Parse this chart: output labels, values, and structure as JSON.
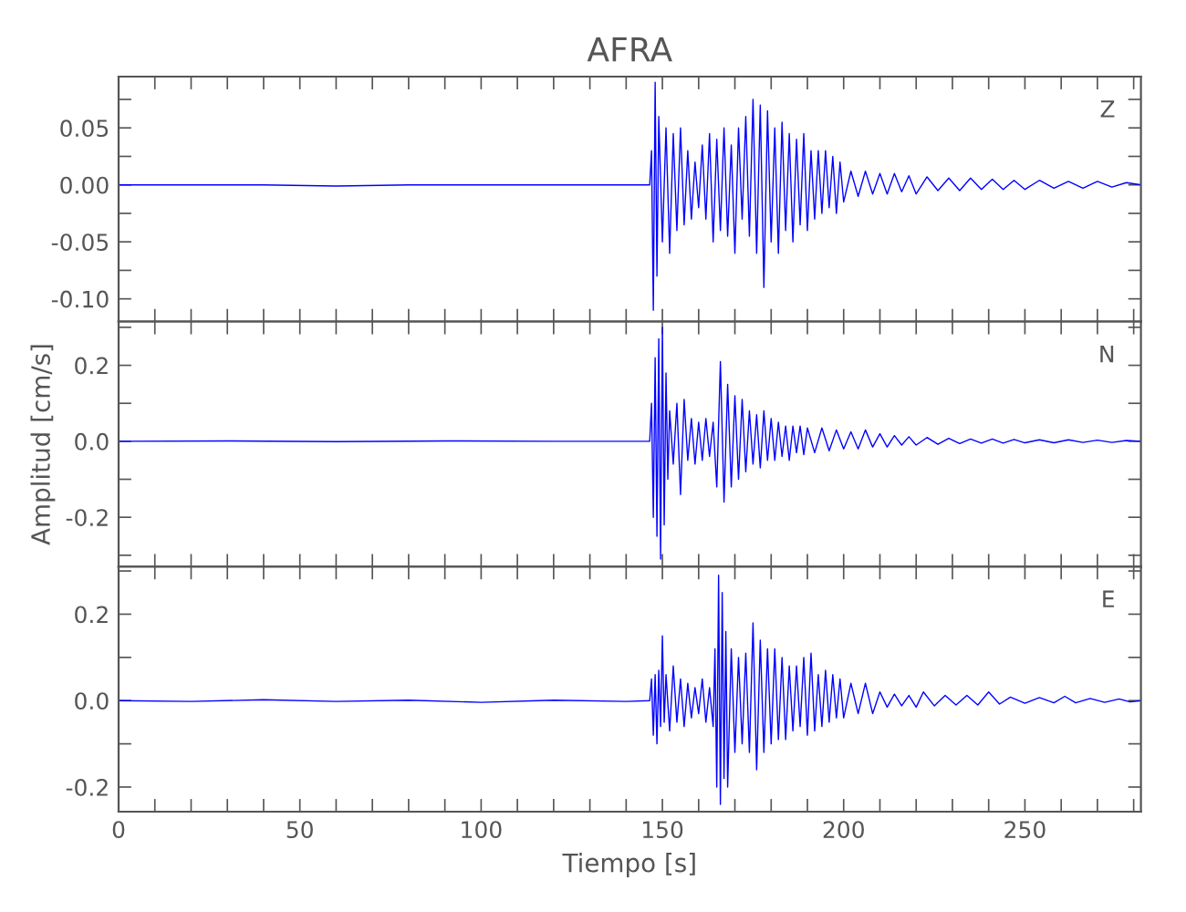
{
  "chart_data": [
    {
      "type": "line",
      "title": "AFRA",
      "annotations": [
        "Z"
      ],
      "tick_labels": "y",
      "xlim": [
        0,
        282
      ],
      "ylim": [
        -0.12,
        0.095
      ],
      "xticks": [
        0,
        {
          "value": 10,
          "label": null
        },
        {
          "value": 20,
          "label": null
        },
        {
          "value": 30,
          "label": null
        },
        {
          "value": 40,
          "label": null
        },
        50,
        {
          "value": 60,
          "label": null
        },
        {
          "value": 70,
          "label": null
        },
        {
          "value": 80,
          "label": null
        },
        {
          "value": 90,
          "label": null
        },
        100,
        {
          "value": 110,
          "label": null
        },
        {
          "value": 120,
          "label": null
        },
        {
          "value": 130,
          "label": null
        },
        {
          "value": 140,
          "label": null
        },
        150,
        {
          "value": 160,
          "label": null
        },
        {
          "value": 170,
          "label": null
        },
        {
          "value": 180,
          "label": null
        },
        {
          "value": 190,
          "label": null
        },
        200,
        {
          "value": 210,
          "label": null
        },
        {
          "value": 220,
          "label": null
        },
        {
          "value": 230,
          "label": null
        },
        {
          "value": 240,
          "label": null
        },
        250,
        {
          "value": 260,
          "label": null
        },
        {
          "value": 270,
          "label": null
        },
        {
          "value": 280,
          "label": null
        }
      ],
      "yticks": [
        {
          "value": -0.1,
          "label": "-0.10"
        },
        {
          "value": -0.075,
          "label": null
        },
        {
          "value": -0.05,
          "label": "-0.05"
        },
        {
          "value": -0.025,
          "label": null
        },
        {
          "value": 0,
          "label": "0.00"
        },
        {
          "value": 0.025,
          "label": null
        },
        {
          "value": 0.05,
          "label": "0.05"
        },
        {
          "value": 0.075,
          "label": null
        }
      ],
      "series": [
        {
          "color": "#0000ff",
          "x": [
            0,
            20,
            40,
            60,
            80,
            100,
            120,
            140,
            146.5,
            147,
            147.5,
            148,
            148.5,
            149,
            150,
            151,
            152,
            153,
            154,
            155,
            156,
            157,
            158,
            159,
            160,
            161,
            162,
            163,
            164,
            165,
            166,
            167,
            168,
            169,
            170,
            171,
            172,
            173,
            174,
            175,
            176,
            177,
            178,
            179,
            180,
            181,
            182,
            183,
            184,
            185,
            186,
            187,
            188,
            189,
            190,
            191,
            192,
            193,
            194,
            195,
            196,
            197,
            198,
            199,
            200,
            202,
            204,
            206,
            208,
            210,
            212,
            214,
            216,
            218,
            220,
            223,
            226,
            229,
            232,
            235,
            238,
            241,
            244,
            247,
            250,
            254,
            258,
            262,
            266,
            270,
            274,
            278,
            282
          ],
          "values": [
            0,
            0,
            0,
            -0.001,
            0,
            0,
            0,
            0,
            0,
            0.03,
            -0.11,
            0.09,
            -0.08,
            0.06,
            -0.05,
            0.05,
            -0.06,
            0.045,
            -0.04,
            0.05,
            -0.035,
            0.03,
            -0.03,
            0.02,
            -0.02,
            0.035,
            -0.03,
            0.045,
            -0.05,
            0.04,
            -0.04,
            0.05,
            -0.045,
            0.035,
            -0.06,
            0.05,
            -0.03,
            0.06,
            -0.045,
            0.075,
            -0.06,
            0.07,
            -0.09,
            0.065,
            -0.05,
            0.05,
            -0.06,
            0.055,
            -0.04,
            0.045,
            -0.05,
            0.04,
            -0.035,
            0.045,
            -0.04,
            0.03,
            -0.03,
            0.03,
            -0.025,
            0.03,
            -0.02,
            0.025,
            -0.025,
            0.02,
            -0.015,
            0.012,
            -0.01,
            0.012,
            -0.008,
            0.01,
            -0.008,
            0.01,
            -0.006,
            0.008,
            -0.008,
            0.007,
            -0.005,
            0.006,
            -0.005,
            0.006,
            -0.004,
            0.005,
            -0.004,
            0.004,
            -0.004,
            0.004,
            -0.003,
            0.003,
            -0.003,
            0.003,
            -0.002,
            0.002,
            0
          ]
        }
      ]
    },
    {
      "type": "line",
      "ylabel": "Amplitud [cm/s]",
      "annotations": [
        "N"
      ],
      "tick_labels": "y",
      "xlim": [
        0,
        282
      ],
      "ylim": [
        -0.33,
        0.315
      ],
      "xticks": [
        0,
        {
          "value": 10,
          "label": null
        },
        {
          "value": 20,
          "label": null
        },
        {
          "value": 30,
          "label": null
        },
        {
          "value": 40,
          "label": null
        },
        50,
        {
          "value": 60,
          "label": null
        },
        {
          "value": 70,
          "label": null
        },
        {
          "value": 80,
          "label": null
        },
        {
          "value": 90,
          "label": null
        },
        100,
        {
          "value": 110,
          "label": null
        },
        {
          "value": 120,
          "label": null
        },
        {
          "value": 130,
          "label": null
        },
        {
          "value": 140,
          "label": null
        },
        150,
        {
          "value": 160,
          "label": null
        },
        {
          "value": 170,
          "label": null
        },
        {
          "value": 180,
          "label": null
        },
        {
          "value": 190,
          "label": null
        },
        200,
        {
          "value": 210,
          "label": null
        },
        {
          "value": 220,
          "label": null
        },
        {
          "value": 230,
          "label": null
        },
        {
          "value": 240,
          "label": null
        },
        250,
        {
          "value": 260,
          "label": null
        },
        {
          "value": 270,
          "label": null
        },
        {
          "value": 280,
          "label": null
        }
      ],
      "yticks": [
        {
          "value": -0.3,
          "label": null
        },
        {
          "value": -0.2,
          "label": "-0.2"
        },
        {
          "value": -0.1,
          "label": null
        },
        {
          "value": 0,
          "label": "0.0"
        },
        {
          "value": 0.1,
          "label": null
        },
        {
          "value": 0.2,
          "label": "0.2"
        },
        {
          "value": 0.3,
          "label": null
        }
      ],
      "series": [
        {
          "color": "#0000ff",
          "x": [
            0,
            30,
            60,
            90,
            120,
            146.5,
            147,
            147.5,
            148,
            148.5,
            149,
            149.5,
            150,
            150.5,
            151,
            151.5,
            152,
            153,
            154,
            155,
            156,
            157,
            158,
            159,
            160,
            161,
            162,
            163,
            164,
            165,
            166,
            167,
            168,
            169,
            170,
            171,
            172,
            173,
            174,
            175,
            176,
            177,
            178,
            179,
            180,
            181,
            182,
            183,
            184,
            185,
            186,
            187,
            188,
            189,
            190,
            192,
            194,
            196,
            198,
            200,
            202,
            204,
            206,
            208,
            210,
            212,
            214,
            216,
            218,
            220,
            223,
            226,
            229,
            232,
            235,
            238,
            241,
            244,
            247,
            250,
            254,
            258,
            262,
            266,
            270,
            274,
            278,
            282
          ],
          "values": [
            0,
            0.001,
            -0.001,
            0.001,
            0,
            0,
            0.1,
            -0.2,
            0.22,
            -0.25,
            0.27,
            -0.31,
            0.3,
            -0.22,
            0.18,
            -0.1,
            0.08,
            -0.06,
            0.1,
            -0.14,
            0.11,
            -0.05,
            0.06,
            -0.06,
            0.05,
            -0.05,
            0.06,
            -0.04,
            0.05,
            -0.12,
            0.21,
            -0.16,
            0.15,
            -0.12,
            0.12,
            -0.1,
            0.11,
            -0.08,
            0.08,
            -0.06,
            0.07,
            -0.07,
            0.08,
            -0.05,
            0.06,
            -0.05,
            0.05,
            -0.04,
            0.04,
            -0.05,
            0.04,
            -0.03,
            0.04,
            -0.035,
            0.035,
            -0.03,
            0.035,
            -0.025,
            0.03,
            -0.02,
            0.025,
            -0.02,
            0.03,
            -0.015,
            0.02,
            -0.015,
            0.015,
            -0.01,
            0.012,
            -0.01,
            0.01,
            -0.008,
            0.008,
            -0.006,
            0.006,
            -0.005,
            0.006,
            -0.005,
            0.005,
            -0.004,
            0.004,
            -0.004,
            0.004,
            -0.003,
            0.003,
            -0.003,
            0.002,
            0
          ]
        }
      ]
    },
    {
      "type": "line",
      "xlabel": "Tiempo [s]",
      "annotations": [
        "E"
      ],
      "xlim": [
        0,
        282
      ],
      "ylim": [
        -0.257,
        0.31
      ],
      "xticks": [
        0,
        {
          "value": 10,
          "label": null
        },
        {
          "value": 20,
          "label": null
        },
        {
          "value": 30,
          "label": null
        },
        {
          "value": 40,
          "label": null
        },
        50,
        {
          "value": 60,
          "label": null
        },
        {
          "value": 70,
          "label": null
        },
        {
          "value": 80,
          "label": null
        },
        {
          "value": 90,
          "label": null
        },
        100,
        {
          "value": 110,
          "label": null
        },
        {
          "value": 120,
          "label": null
        },
        {
          "value": 130,
          "label": null
        },
        {
          "value": 140,
          "label": null
        },
        150,
        {
          "value": 160,
          "label": null
        },
        {
          "value": 170,
          "label": null
        },
        {
          "value": 180,
          "label": null
        },
        {
          "value": 190,
          "label": null
        },
        200,
        {
          "value": 210,
          "label": null
        },
        {
          "value": 220,
          "label": null
        },
        {
          "value": 230,
          "label": null
        },
        {
          "value": 240,
          "label": null
        },
        250,
        {
          "value": 260,
          "label": null
        },
        {
          "value": 270,
          "label": null
        },
        {
          "value": 280,
          "label": null
        }
      ],
      "yticks": [
        {
          "value": -0.2,
          "label": "-0.2"
        },
        {
          "value": -0.1,
          "label": null
        },
        {
          "value": 0,
          "label": "0.0"
        },
        {
          "value": 0.1,
          "label": null
        },
        {
          "value": 0.2,
          "label": "0.2"
        },
        {
          "value": 0.3,
          "label": null
        }
      ],
      "series": [
        {
          "color": "#0000ff",
          "x": [
            0,
            20,
            40,
            60,
            80,
            100,
            120,
            140,
            146.5,
            147,
            147.5,
            148,
            148.5,
            149,
            149.5,
            150,
            150.5,
            151,
            152,
            153,
            154,
            155,
            156,
            157,
            158,
            159,
            160,
            161,
            162,
            163,
            164,
            164.5,
            165,
            165.5,
            166,
            166.5,
            167,
            167.5,
            168,
            169,
            170,
            171,
            172,
            173,
            174,
            175,
            176,
            177,
            178,
            179,
            180,
            181,
            182,
            183,
            184,
            185,
            186,
            187,
            188,
            189,
            190,
            191,
            192,
            193,
            194,
            195,
            196,
            197,
            198,
            199,
            200,
            202,
            204,
            206,
            208,
            210,
            212,
            214,
            216,
            218,
            220,
            222,
            225,
            228,
            231,
            234,
            237,
            240,
            243,
            246,
            250,
            254,
            258,
            261,
            264,
            268,
            272,
            276,
            279,
            282
          ],
          "values": [
            0,
            -0.002,
            0.002,
            -0.002,
            0.001,
            -0.004,
            0.001,
            -0.002,
            0,
            0.05,
            -0.08,
            0.06,
            -0.1,
            0.07,
            -0.06,
            0.15,
            -0.05,
            0.06,
            -0.07,
            0.08,
            -0.05,
            0.05,
            -0.06,
            0.04,
            -0.04,
            0.03,
            -0.03,
            0.05,
            -0.05,
            0.03,
            -0.06,
            0.12,
            -0.2,
            0.29,
            -0.24,
            0.25,
            -0.18,
            0.16,
            -0.2,
            0.12,
            -0.12,
            0.1,
            -0.1,
            0.11,
            -0.12,
            0.18,
            -0.16,
            0.14,
            -0.12,
            0.12,
            -0.1,
            0.12,
            -0.09,
            0.1,
            -0.09,
            0.08,
            -0.07,
            0.08,
            -0.06,
            0.1,
            -0.08,
            0.11,
            -0.07,
            0.06,
            -0.06,
            0.07,
            -0.05,
            0.06,
            -0.04,
            0.05,
            -0.04,
            0.04,
            -0.03,
            0.04,
            -0.03,
            0.02,
            -0.015,
            0.015,
            -0.012,
            0.012,
            -0.015,
            0.02,
            -0.012,
            0.012,
            -0.01,
            0.012,
            -0.01,
            0.02,
            -0.008,
            0.008,
            -0.006,
            0.007,
            -0.005,
            0.01,
            -0.005,
            0.005,
            -0.004,
            0.004,
            -0.003,
            0
          ]
        }
      ]
    }
  ]
}
